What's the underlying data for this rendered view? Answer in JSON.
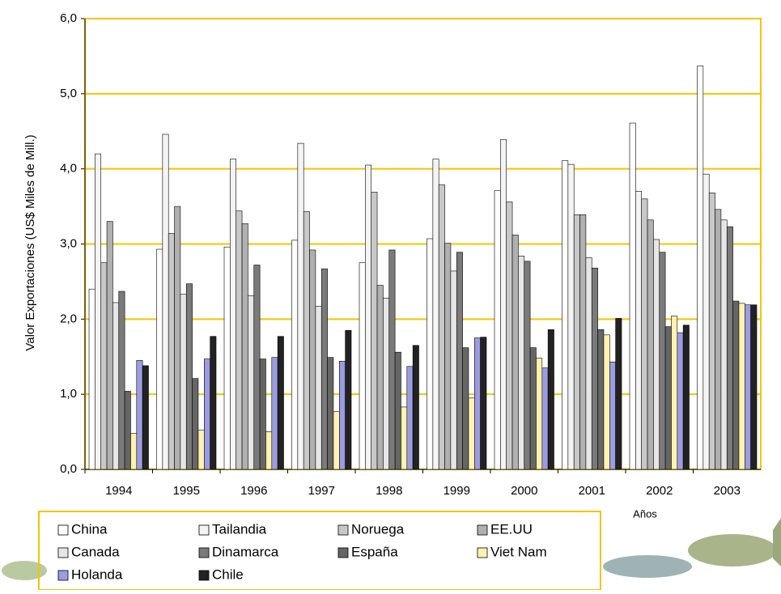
{
  "chart_data": {
    "type": "bar",
    "y_label": "Valor Exportaciones (US$ Miles de Mill.)",
    "x_label": "Años",
    "categories": [
      "1994",
      "1995",
      "1996",
      "1997",
      "1998",
      "1999",
      "2000",
      "2001",
      "2002",
      "2003"
    ],
    "ylim": [
      0,
      6
    ],
    "yticks": [
      {
        "value": 0,
        "label": "0,0"
      },
      {
        "value": 1,
        "label": "1,0"
      },
      {
        "value": 2,
        "label": "2,0"
      },
      {
        "value": 3,
        "label": "3,0"
      },
      {
        "value": 4,
        "label": "4,0"
      },
      {
        "value": 5,
        "label": "5,0"
      },
      {
        "value": 6,
        "label": "6,0"
      }
    ],
    "grid": true,
    "series": [
      {
        "name": "China",
        "color": "#ffffff",
        "values": [
          2.4,
          2.93,
          2.96,
          3.05,
          2.75,
          3.07,
          3.71,
          4.11,
          4.61,
          5.37
        ]
      },
      {
        "name": "Tailandia",
        "color": "#f4f4f4",
        "values": [
          4.2,
          4.46,
          4.13,
          4.34,
          4.05,
          4.13,
          4.39,
          4.06,
          3.7,
          3.93
        ]
      },
      {
        "name": "Noruega",
        "color": "#c8c8c8",
        "values": [
          2.75,
          3.14,
          3.44,
          3.43,
          3.69,
          3.79,
          3.56,
          3.39,
          3.6,
          3.68
        ]
      },
      {
        "name": "EE.UU",
        "color": "#b0b0b0",
        "values": [
          3.3,
          3.5,
          3.27,
          2.92,
          2.45,
          3.01,
          3.12,
          3.39,
          3.32,
          3.46
        ]
      },
      {
        "name": "Canada",
        "color": "#e6e6e6",
        "values": [
          2.22,
          2.33,
          2.31,
          2.17,
          2.28,
          2.64,
          2.84,
          2.82,
          3.06,
          3.32
        ]
      },
      {
        "name": "Dinamarca",
        "color": "#7a7a7a",
        "values": [
          2.37,
          2.47,
          2.72,
          2.67,
          2.92,
          2.89,
          2.77,
          2.68,
          2.89,
          3.23
        ]
      },
      {
        "name": "España",
        "color": "#666666",
        "values": [
          1.04,
          1.21,
          1.47,
          1.49,
          1.56,
          1.62,
          1.62,
          1.86,
          1.9,
          2.24
        ]
      },
      {
        "name": "Viet Nam",
        "color": "#fff2b0",
        "values": [
          0.48,
          0.52,
          0.5,
          0.77,
          0.83,
          0.95,
          1.48,
          1.79,
          2.04,
          2.21
        ]
      },
      {
        "name": "Holanda",
        "color": "#9c9ce0",
        "values": [
          1.45,
          1.47,
          1.49,
          1.44,
          1.37,
          1.75,
          1.35,
          1.43,
          1.82,
          2.19
        ]
      },
      {
        "name": "Chile",
        "color": "#222222",
        "values": [
          1.38,
          1.77,
          1.77,
          1.85,
          1.65,
          1.76,
          1.86,
          2.01,
          1.92,
          2.19
        ]
      }
    ]
  }
}
